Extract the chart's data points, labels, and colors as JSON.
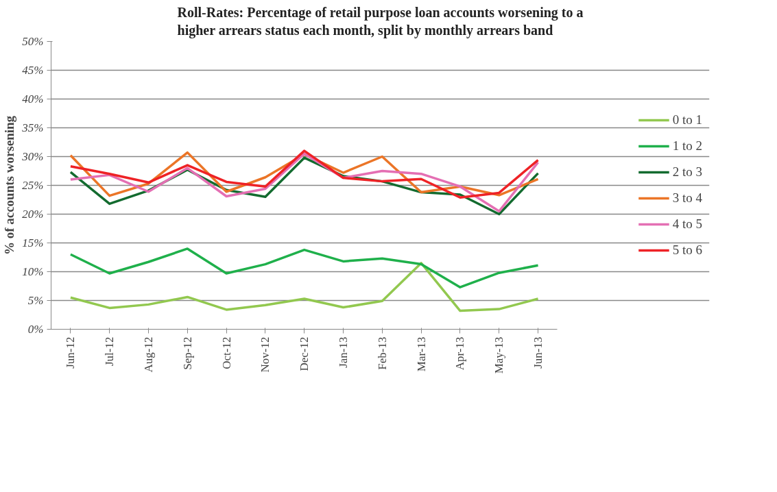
{
  "chart_data": {
    "type": "line",
    "title": "Roll-Rates: Percentage of retail purpose loan accounts worsening to a higher arrears status each month, split by monthly arrears band",
    "ylabel": "% of accounts worsening",
    "categories": [
      "Jun-12",
      "Jul-12",
      "Aug-12",
      "Sep-12",
      "Oct-12",
      "Nov-12",
      "Dec-12",
      "Jan-13",
      "Feb-13",
      "Mar-13",
      "Apr-13",
      "May-13",
      "Jun-13"
    ],
    "series": [
      {
        "name": "0 to 1",
        "color": "#92c84f",
        "values": [
          5.5,
          3.7,
          4.3,
          5.6,
          3.4,
          4.2,
          5.3,
          3.8,
          4.9,
          11.5,
          3.2,
          3.5,
          5.3
        ]
      },
      {
        "name": "1 to 2",
        "color": "#1fb04b",
        "values": [
          13,
          9.7,
          11.7,
          14,
          9.7,
          11.3,
          13.8,
          11.8,
          12.3,
          11.3,
          7.3,
          9.8,
          11.1
        ]
      },
      {
        "name": "2 to 3",
        "color": "#136b2f",
        "values": [
          27.3,
          21.8,
          24.1,
          27.7,
          24.2,
          23,
          29.8,
          26.6,
          25.7,
          23.8,
          23.4,
          20,
          27.1
        ]
      },
      {
        "name": "3 to 4",
        "color": "#eb7527",
        "values": [
          30.2,
          23.2,
          25.3,
          30.7,
          23.9,
          26.4,
          30.4,
          27.2,
          30,
          23.8,
          24.8,
          23.3,
          26.1
        ]
      },
      {
        "name": "4 to 5",
        "color": "#e46fb3",
        "values": [
          26,
          26.8,
          23.9,
          28,
          23.1,
          24.4,
          30.5,
          26.3,
          27.5,
          27,
          24.8,
          20.5,
          29
        ]
      },
      {
        "name": "5 to 6",
        "color": "#ee2226",
        "values": [
          28.3,
          27,
          25.5,
          28.5,
          25.6,
          24.8,
          31,
          26.3,
          25.7,
          26.1,
          22.9,
          23.7,
          29.4
        ]
      }
    ],
    "ylim": [
      0,
      50
    ],
    "yticks": [
      {
        "value": 0,
        "label": "0%"
      },
      {
        "value": 5,
        "label": "5%"
      },
      {
        "value": 10,
        "label": "10%"
      },
      {
        "value": 15,
        "label": "15%"
      },
      {
        "value": 20,
        "label": "20%"
      },
      {
        "value": 25,
        "label": "25%"
      },
      {
        "value": 30,
        "label": "30%"
      },
      {
        "value": 35,
        "label": "35%"
      },
      {
        "value": 40,
        "label": "40%"
      },
      {
        "value": 45,
        "label": "45%"
      },
      {
        "value": 50,
        "label": "50%"
      }
    ],
    "grid": "y",
    "legend": "right",
    "marker": "none",
    "line_style": "solid"
  }
}
